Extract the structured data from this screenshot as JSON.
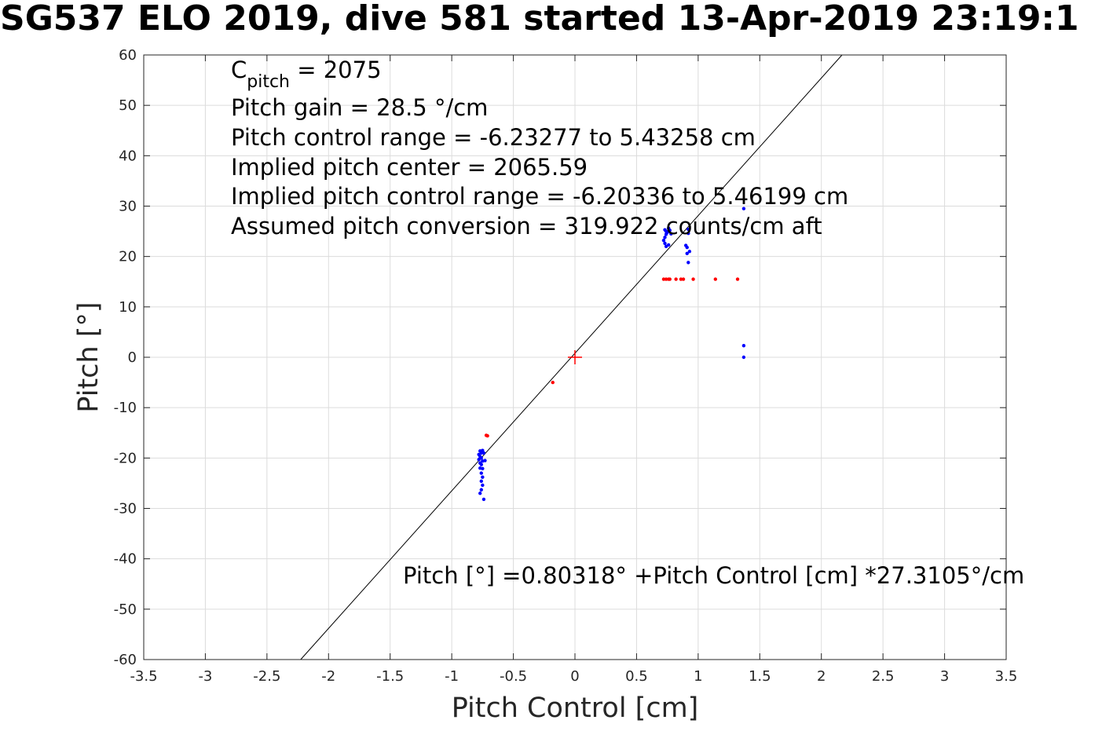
{
  "chart_data": {
    "type": "scatter",
    "title": "SG537 ELO 2019, dive 581 started 13-Apr-2019 23:19:1",
    "xlabel": "Pitch Control [cm]",
    "ylabel": "Pitch [°]",
    "xlim": [
      -3.5,
      3.5
    ],
    "ylim": [
      -60,
      60
    ],
    "xticks": [
      -3.5,
      -3,
      -2.5,
      -2,
      -1.5,
      -1,
      -0.5,
      0,
      0.5,
      1,
      1.5,
      2,
      2.5,
      3,
      3.5
    ],
    "yticks": [
      -60,
      -50,
      -40,
      -30,
      -20,
      -10,
      0,
      10,
      20,
      30,
      40,
      50,
      60
    ],
    "grid": true,
    "annotations": {
      "c_pitch_symbol": "C",
      "c_pitch_subscript": "pitch",
      "c_pitch_value": " = 2075",
      "pitch_gain": "Pitch gain = 28.5 °/cm",
      "pitch_control_range": "Pitch control range = -6.23277 to 5.43258 cm",
      "implied_pitch_center": "Implied pitch center = 2065.59",
      "implied_control_range": "Implied pitch control range = -6.20336 to 5.46199 cm",
      "assumed_conversion": "Assumed pitch conversion = 319.922 counts/cm aft",
      "fit_equation": "Pitch [°] =0.80318° +Pitch Control [cm] *27.3105°/cm"
    },
    "fit_line": {
      "intercept": 0.80318,
      "slope": 27.3105,
      "color": "#000000"
    },
    "center_marker": {
      "x": 0,
      "y": 0,
      "color": "#ff0000"
    },
    "series": [
      {
        "color": "#0000ff",
        "points": [
          [
            -0.77,
            -18.6
          ],
          [
            -0.76,
            -19.0
          ],
          [
            -0.78,
            -19.3
          ],
          [
            -0.75,
            -18.5
          ],
          [
            -0.74,
            -19.0
          ],
          [
            -0.77,
            -19.7
          ],
          [
            -0.76,
            -20.0
          ],
          [
            -0.78,
            -20.3
          ],
          [
            -0.75,
            -20.6
          ],
          [
            -0.77,
            -21.0
          ],
          [
            -0.73,
            -20.5
          ],
          [
            -0.76,
            -21.3
          ],
          [
            -0.77,
            -22.0
          ],
          [
            -0.75,
            -22.1
          ],
          [
            -0.76,
            -23.0
          ],
          [
            -0.75,
            -23.8
          ],
          [
            -0.76,
            -24.6
          ],
          [
            -0.75,
            -25.4
          ],
          [
            -0.76,
            -26.3
          ],
          [
            -0.77,
            -27.0
          ],
          [
            -0.74,
            -28.2
          ],
          [
            0.73,
            25.3
          ],
          [
            0.74,
            25.0
          ],
          [
            0.75,
            24.8
          ],
          [
            0.76,
            25.6
          ],
          [
            0.77,
            25.2
          ],
          [
            0.74,
            24.4
          ],
          [
            0.73,
            23.8
          ],
          [
            0.72,
            23.2
          ],
          [
            0.73,
            22.6
          ],
          [
            0.74,
            22.0
          ],
          [
            0.76,
            22.3
          ],
          [
            0.78,
            24.5
          ],
          [
            0.92,
            25.4
          ],
          [
            0.92,
            24.6
          ],
          [
            0.9,
            22.2
          ],
          [
            0.91,
            21.8
          ],
          [
            0.93,
            21.0
          ],
          [
            0.91,
            20.6
          ],
          [
            0.92,
            18.8
          ],
          [
            1.37,
            29.5
          ],
          [
            1.37,
            2.3
          ],
          [
            1.37,
            0.0
          ]
        ]
      },
      {
        "color": "#ff0000",
        "points": [
          [
            -0.72,
            -15.5
          ],
          [
            -0.71,
            -15.6
          ],
          [
            -0.18,
            -5.0
          ],
          [
            0.72,
            15.5
          ],
          [
            0.74,
            15.5
          ],
          [
            0.76,
            15.5
          ],
          [
            0.77,
            15.5
          ],
          [
            0.82,
            15.5
          ],
          [
            0.86,
            15.5
          ],
          [
            0.88,
            15.5
          ],
          [
            0.96,
            15.5
          ],
          [
            1.14,
            15.5
          ],
          [
            1.32,
            15.5
          ]
        ]
      }
    ]
  }
}
